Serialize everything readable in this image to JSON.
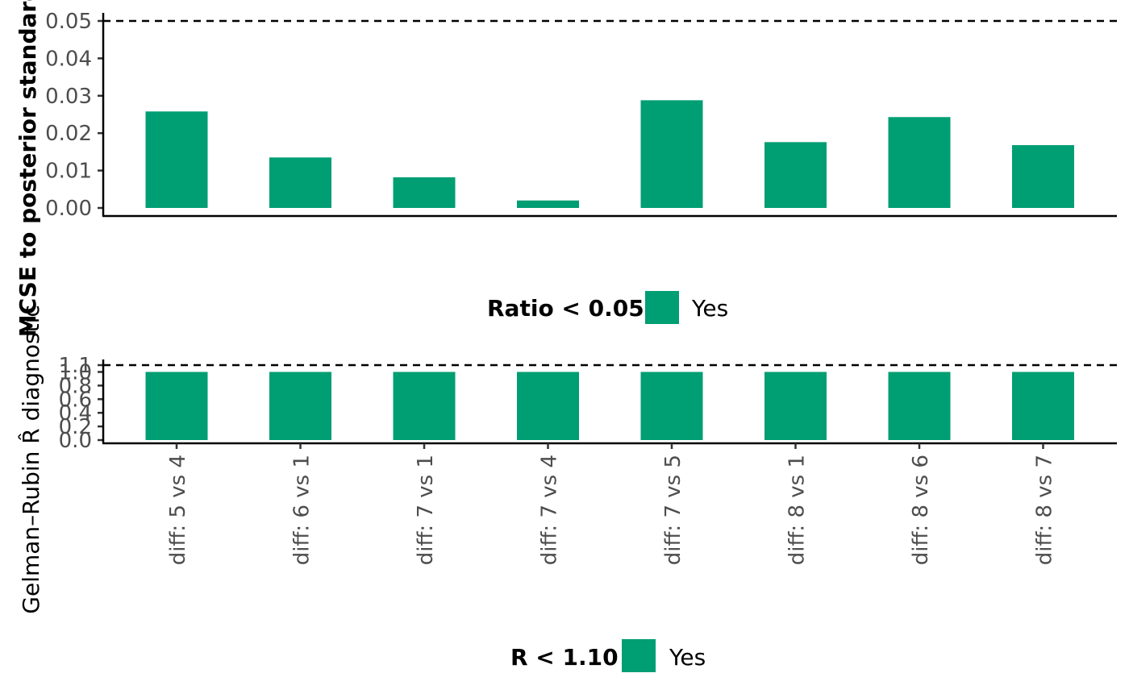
{
  "colors": {
    "bar": "#009E73",
    "axis": "#000000",
    "tick_text": "#4d4d4d"
  },
  "chart_data": [
    {
      "type": "bar",
      "ylabel": "MCSE to posterior standard",
      "ylim": [
        0,
        0.05
      ],
      "yticks": [
        "0.00",
        "0.01",
        "0.02",
        "0.03",
        "0.04",
        "0.05"
      ],
      "threshold": 0.05,
      "threshold_style": "dashed",
      "categories": [
        "diff: 5 vs 4",
        "diff: 6 vs 1",
        "diff: 7 vs 1",
        "diff: 7 vs 4",
        "diff: 7 vs 5",
        "diff: 8 vs 1",
        "diff: 8 vs 6",
        "diff: 8 vs 7"
      ],
      "values": [
        0.0258,
        0.0135,
        0.0082,
        0.002,
        0.0288,
        0.0176,
        0.0243,
        0.0168
      ],
      "legend": {
        "title": "Ratio < 0.05",
        "entries": [
          "Yes"
        ],
        "placement": "bottom"
      },
      "grid": false
    },
    {
      "type": "bar",
      "ylabel": "Gelman–Rubin R̂ diagnostic",
      "ylim": [
        0,
        1.1
      ],
      "yticks": [
        "0.0",
        "0.2",
        "0.4",
        "0.6",
        "0.8",
        "1.0",
        "1.1"
      ],
      "threshold": 1.1,
      "threshold_style": "dashed",
      "categories": [
        "diff: 5 vs 4",
        "diff: 6 vs 1",
        "diff: 7 vs 1",
        "diff: 7 vs 4",
        "diff: 7 vs 5",
        "diff: 8 vs 1",
        "diff: 8 vs 6",
        "diff: 8 vs 7"
      ],
      "values": [
        1.0,
        1.0,
        1.0,
        1.0,
        1.0,
        1.0,
        1.0,
        1.0
      ],
      "legend": {
        "title": "R < 1.10",
        "entries": [
          "Yes"
        ],
        "placement": "bottom"
      },
      "grid": false
    }
  ]
}
